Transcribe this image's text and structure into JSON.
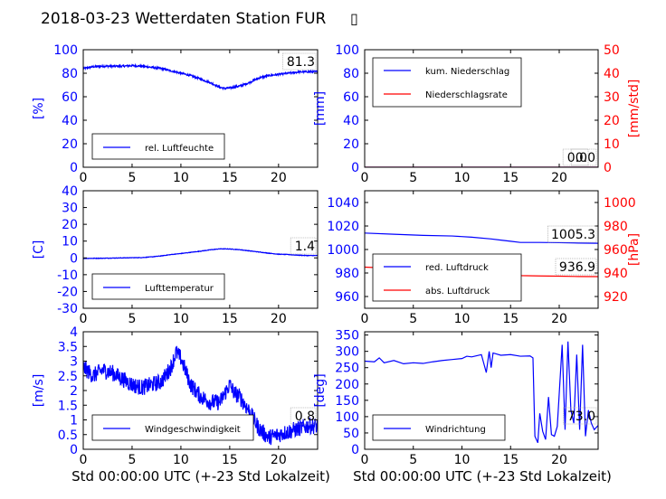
{
  "page_title": "2018-03-23 Wetterdaten Station FUR",
  "title_suffix_glyph": "▯",
  "colors": {
    "blue": "#0000ff",
    "red": "#ff0000",
    "black": "#000000"
  },
  "xlabel": "Std 00:00:00 UTC (+-23 Std Lokalzeit)",
  "chart_data": [
    {
      "id": "humidity",
      "type": "line",
      "xlim": [
        0,
        24
      ],
      "xticks": [
        0,
        5,
        10,
        15,
        20
      ],
      "ylabel": "[%]",
      "ylim": [
        0,
        100
      ],
      "yticks": [
        0,
        20,
        40,
        60,
        80,
        100
      ],
      "ytick_color": "#0000ff",
      "legend": "lower-left",
      "annotations": [
        "81.3"
      ],
      "series": [
        {
          "name": "rel. Luftfeuchte",
          "color": "#0000ff",
          "noise": 0.8,
          "x": [
            0,
            1,
            2,
            3,
            4,
            5,
            6,
            7,
            8,
            9,
            10,
            11,
            12,
            13,
            14,
            14.5,
            15,
            16,
            17,
            18,
            19,
            20,
            21,
            22,
            23,
            24
          ],
          "y": [
            84,
            85.5,
            86,
            86,
            86,
            86.5,
            86,
            85,
            84,
            82,
            80,
            78,
            75,
            72,
            68,
            67,
            67.5,
            69,
            72,
            76,
            78,
            79,
            80,
            81,
            81.3,
            81.3
          ]
        }
      ]
    },
    {
      "id": "precip",
      "type": "line",
      "xlim": [
        0,
        24
      ],
      "xticks": [
        0,
        5,
        10,
        15,
        20
      ],
      "ylabel": "[mm]",
      "ylim": [
        0,
        100
      ],
      "yticks": [
        0,
        20,
        40,
        60,
        80,
        100
      ],
      "ytick_color": "#0000ff",
      "ylabel2": "[mm/std]",
      "ylim2": [
        0,
        50
      ],
      "yticks2": [
        0,
        10,
        20,
        30,
        40,
        50
      ],
      "ytick_color2": "#ff0000",
      "legend": "top-left",
      "annotations": [
        "0.0",
        "0.0"
      ],
      "series": [
        {
          "name": "kum. Niederschlag",
          "color": "#0000ff",
          "axis": "left",
          "x": [
            0,
            24
          ],
          "y": [
            0,
            0
          ]
        },
        {
          "name": "Niederschlagsrate",
          "color": "#ff0000",
          "axis": "right",
          "x": [
            0,
            24
          ],
          "y": [
            0,
            0
          ]
        }
      ]
    },
    {
      "id": "temperature",
      "type": "line",
      "xlim": [
        0,
        24
      ],
      "xticks": [
        0,
        5,
        10,
        15,
        20
      ],
      "ylabel": "[C]",
      "ylim": [
        -30,
        40
      ],
      "yticks": [
        -30,
        -20,
        -10,
        0,
        10,
        20,
        30,
        40
      ],
      "ytick_color": "#0000ff",
      "legend": "lower-left",
      "annotations": [
        "1.4"
      ],
      "series": [
        {
          "name": "Lufttemperatur",
          "color": "#0000ff",
          "noise": 0.15,
          "x": [
            0,
            2,
            4,
            6,
            7,
            8,
            9,
            10,
            11,
            12,
            13,
            14,
            15,
            16,
            17,
            18,
            19,
            20,
            21,
            22,
            23,
            24
          ],
          "y": [
            -0.3,
            -0.2,
            0,
            0.2,
            0.6,
            1.2,
            2,
            2.6,
            3.3,
            4,
            4.8,
            5.4,
            5.3,
            4.9,
            4.2,
            3.5,
            2.8,
            2.2,
            2,
            1.6,
            1.4,
            1.4
          ]
        }
      ]
    },
    {
      "id": "pressure",
      "type": "line",
      "xlim": [
        0,
        24
      ],
      "xticks": [
        0,
        5,
        10,
        15,
        20
      ],
      "ylabel": "",
      "ylim": [
        950,
        1050
      ],
      "yticks": [
        960,
        980,
        1000,
        1020,
        1040
      ],
      "ytick_color": "#0000ff",
      "ylabel2": "[hPa]",
      "ylim2": [
        910,
        1010
      ],
      "yticks2": [
        920,
        940,
        960,
        980,
        1000
      ],
      "ytick_color2": "#ff0000",
      "legend": "lower-left",
      "annotations": [
        "1005.3",
        "936.9"
      ],
      "series": [
        {
          "name": "red. Luftdruck",
          "color": "#0000ff",
          "axis": "left",
          "x": [
            0,
            3,
            6,
            9,
            11,
            13,
            14,
            15,
            16,
            18,
            20,
            22,
            24
          ],
          "y": [
            1014,
            1013,
            1012,
            1011.5,
            1010.5,
            1009,
            1008,
            1007,
            1006,
            1006,
            1005.8,
            1005.5,
            1005.3
          ]
        },
        {
          "name": "abs. Luftdruck",
          "color": "#ff0000",
          "axis": "right",
          "x": [
            0,
            3,
            6,
            9,
            11,
            13,
            14,
            15,
            16,
            18,
            20,
            22,
            24
          ],
          "y": [
            945,
            944,
            943,
            942.5,
            942,
            940.5,
            939.5,
            938.5,
            937.8,
            937.5,
            937.3,
            937,
            936.9
          ]
        }
      ]
    },
    {
      "id": "windspeed",
      "type": "line",
      "xlim": [
        0,
        24
      ],
      "xticks": [
        0,
        5,
        10,
        15,
        20
      ],
      "ylabel": "[m/s]",
      "ylim": [
        0,
        4
      ],
      "yticks": [
        0,
        0.5,
        1,
        1.5,
        2,
        2.5,
        3,
        3.5,
        4
      ],
      "ytick_color": "#0000ff",
      "legend": "lower-left",
      "annotations": [
        "0.8"
      ],
      "series": [
        {
          "name": "Windgeschwindigkeit",
          "color": "#0000ff",
          "noise": 0.28,
          "x": [
            0,
            1,
            2,
            3,
            4,
            5,
            6,
            7,
            8,
            9,
            9.5,
            10,
            11,
            12,
            13,
            14,
            15,
            15.5,
            16,
            17,
            18,
            19,
            20,
            21,
            22,
            23,
            24
          ],
          "y": [
            2.8,
            2.5,
            2.7,
            2.6,
            2.4,
            2.2,
            2.1,
            2.2,
            2.3,
            2.8,
            3.3,
            3.1,
            2.2,
            1.8,
            1.6,
            1.6,
            2.2,
            1.9,
            1.8,
            1.3,
            0.7,
            0.4,
            0.5,
            0.6,
            0.7,
            0.8,
            0.8
          ]
        }
      ]
    },
    {
      "id": "winddir",
      "type": "line",
      "xlim": [
        0,
        24
      ],
      "xticks": [
        0,
        5,
        10,
        15,
        20
      ],
      "ylabel": "[deg]",
      "ylim": [
        0,
        360
      ],
      "yticks": [
        0,
        50,
        100,
        150,
        200,
        250,
        300,
        350
      ],
      "ytick_color": "#0000ff",
      "legend": "lower-left",
      "annotations": [
        "73.0"
      ],
      "series": [
        {
          "name": "Windrichtung",
          "color": "#0000ff",
          "x": [
            0,
            1,
            1.5,
            2,
            3,
            4,
            5,
            6,
            7,
            8,
            9,
            10,
            10.5,
            11,
            12,
            12.5,
            12.8,
            13,
            13.2,
            14,
            15,
            16,
            17,
            17.3,
            17.5,
            17.8,
            18,
            18.3,
            18.6,
            18.9,
            19.2,
            19.5,
            19.8,
            20,
            20.3,
            20.6,
            20.9,
            21.2,
            21.5,
            21.8,
            22.1,
            22.4,
            22.7,
            23,
            23.3,
            23.6,
            24
          ],
          "y": [
            270,
            268,
            280,
            265,
            272,
            262,
            265,
            263,
            268,
            272,
            275,
            278,
            285,
            283,
            290,
            235,
            300,
            250,
            295,
            288,
            290,
            285,
            286,
            280,
            40,
            20,
            110,
            55,
            30,
            160,
            45,
            40,
            70,
            170,
            320,
            60,
            330,
            120,
            80,
            290,
            60,
            320,
            40,
            120,
            80,
            60,
            73
          ]
        }
      ]
    }
  ]
}
